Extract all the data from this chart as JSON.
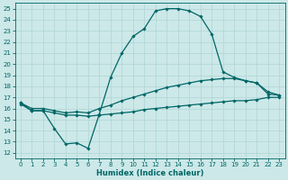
{
  "xlabel": "Humidex (Indice chaleur)",
  "ylabel": "",
  "xlim": [
    -0.5,
    23.5
  ],
  "ylim": [
    11.5,
    25.5
  ],
  "xticks": [
    0,
    1,
    2,
    3,
    4,
    5,
    6,
    7,
    8,
    9,
    10,
    11,
    12,
    13,
    14,
    15,
    16,
    17,
    18,
    19,
    20,
    21,
    22,
    23
  ],
  "yticks": [
    12,
    13,
    14,
    15,
    16,
    17,
    18,
    19,
    20,
    21,
    22,
    23,
    24,
    25
  ],
  "background_color": "#cce8e8",
  "grid_color": "#b0d4d4",
  "line_color": "#006666",
  "line1_x": [
    0,
    1,
    2,
    3,
    4,
    5,
    6,
    7,
    8,
    9,
    10,
    11,
    12,
    13,
    14,
    15,
    16,
    17,
    18,
    19,
    20,
    21,
    22,
    23
  ],
  "line1_y": [
    16.5,
    15.8,
    15.8,
    14.2,
    12.8,
    12.9,
    12.4,
    15.5,
    18.8,
    21.0,
    22.5,
    23.2,
    24.8,
    25.0,
    25.0,
    24.8,
    24.3,
    22.7,
    19.3,
    18.8,
    18.5,
    18.3,
    17.3,
    17.2
  ],
  "line2_x": [
    0,
    1,
    2,
    3,
    4,
    5,
    6,
    7,
    8,
    9,
    10,
    11,
    12,
    13,
    14,
    15,
    16,
    17,
    18,
    19,
    20,
    21,
    22,
    23
  ],
  "line2_y": [
    16.5,
    16.0,
    16.0,
    15.8,
    15.6,
    15.7,
    15.6,
    16.0,
    16.3,
    16.7,
    17.0,
    17.3,
    17.6,
    17.9,
    18.1,
    18.3,
    18.5,
    18.6,
    18.7,
    18.7,
    18.5,
    18.3,
    17.5,
    17.2
  ],
  "line3_x": [
    0,
    1,
    2,
    3,
    4,
    5,
    6,
    7,
    8,
    9,
    10,
    11,
    12,
    13,
    14,
    15,
    16,
    17,
    18,
    19,
    20,
    21,
    22,
    23
  ],
  "line3_y": [
    16.4,
    15.8,
    15.8,
    15.6,
    15.4,
    15.4,
    15.3,
    15.4,
    15.5,
    15.6,
    15.7,
    15.9,
    16.0,
    16.1,
    16.2,
    16.3,
    16.4,
    16.5,
    16.6,
    16.7,
    16.7,
    16.8,
    17.0,
    17.0
  ],
  "marker": "D",
  "marker_size": 1.8,
  "line_width": 0.9,
  "tick_fontsize": 5.0,
  "xlabel_fontsize": 6.0
}
